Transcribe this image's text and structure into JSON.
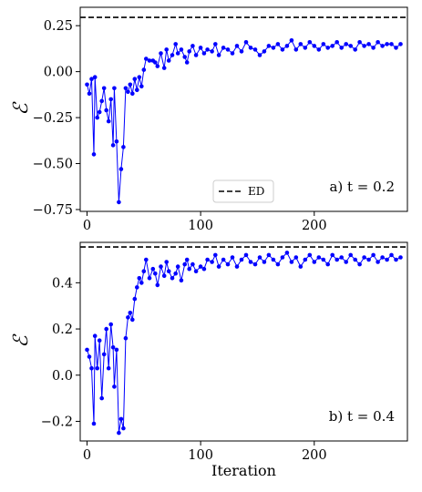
{
  "chart_data": [
    {
      "type": "line",
      "annotation": "a) t = 0.2",
      "ylabel": "ℰ",
      "xlabel": "",
      "xlim": [
        -6,
        282
      ],
      "ylim": [
        -0.76,
        0.35
      ],
      "xticks": [
        0,
        100,
        200
      ],
      "yticks": [
        -0.75,
        -0.5,
        -0.25,
        0.0,
        0.25
      ],
      "ytick_labels": [
        "−0.75",
        "−0.50",
        "−0.25",
        "0.00",
        "0.25"
      ],
      "legend": {
        "position": "bottom-center",
        "entries": [
          {
            "name": "ED",
            "style": "dashed",
            "color": "#000000"
          }
        ]
      },
      "ed_value": 0.295,
      "series": [
        {
          "name": "",
          "color": "#0000ff",
          "x": [
            0,
            2,
            4,
            6,
            7,
            9,
            11,
            13,
            15,
            17,
            19,
            21,
            23,
            24,
            26,
            28,
            30,
            32,
            34,
            36,
            38,
            40,
            42,
            44,
            46,
            48,
            50,
            52,
            55,
            58,
            60,
            62,
            65,
            68,
            70,
            72,
            75,
            78,
            80,
            83,
            86,
            88,
            90,
            93,
            96,
            100,
            103,
            106,
            110,
            113,
            116,
            120,
            124,
            128,
            132,
            136,
            140,
            144,
            148,
            152,
            156,
            160,
            164,
            168,
            172,
            176,
            180,
            184,
            188,
            192,
            196,
            200,
            204,
            208,
            212,
            216,
            220,
            224,
            228,
            232,
            236,
            240,
            244,
            248,
            252,
            256,
            260,
            264,
            268,
            272,
            276
          ],
          "y": [
            -0.07,
            -0.12,
            -0.04,
            -0.45,
            -0.03,
            -0.25,
            -0.22,
            -0.16,
            -0.09,
            -0.21,
            -0.27,
            -0.15,
            -0.4,
            -0.09,
            -0.38,
            -0.71,
            -0.53,
            -0.41,
            -0.09,
            -0.11,
            -0.07,
            -0.12,
            -0.04,
            -0.1,
            -0.03,
            -0.08,
            0.01,
            0.07,
            0.06,
            0.06,
            0.05,
            0.03,
            0.1,
            0.02,
            0.12,
            0.06,
            0.09,
            0.15,
            0.1,
            0.12,
            0.08,
            0.05,
            0.11,
            0.14,
            0.09,
            0.13,
            0.1,
            0.12,
            0.11,
            0.15,
            0.09,
            0.13,
            0.12,
            0.1,
            0.14,
            0.11,
            0.16,
            0.13,
            0.12,
            0.09,
            0.11,
            0.14,
            0.13,
            0.15,
            0.12,
            0.14,
            0.17,
            0.12,
            0.15,
            0.13,
            0.16,
            0.14,
            0.12,
            0.15,
            0.13,
            0.14,
            0.16,
            0.13,
            0.15,
            0.14,
            0.12,
            0.16,
            0.14,
            0.15,
            0.13,
            0.16,
            0.14,
            0.15,
            0.15,
            0.13,
            0.15
          ]
        }
      ]
    },
    {
      "type": "line",
      "annotation": "b) t = 0.4",
      "ylabel": "ℰ",
      "xlabel": "Iteration",
      "xlim": [
        -6,
        282
      ],
      "ylim": [
        -0.285,
        0.575
      ],
      "xticks": [
        0,
        100,
        200
      ],
      "yticks": [
        -0.2,
        0.0,
        0.2,
        0.4
      ],
      "ytick_labels": [
        "−0.2",
        "0.0",
        "0.2",
        "0.4"
      ],
      "ed_value": 0.555,
      "series": [
        {
          "name": "",
          "color": "#0000ff",
          "x": [
            0,
            2,
            4,
            6,
            7,
            9,
            11,
            13,
            15,
            17,
            19,
            21,
            23,
            24,
            26,
            28,
            30,
            32,
            34,
            36,
            38,
            40,
            42,
            44,
            46,
            48,
            50,
            52,
            55,
            58,
            60,
            62,
            65,
            68,
            70,
            72,
            75,
            78,
            80,
            83,
            86,
            88,
            90,
            93,
            96,
            100,
            103,
            106,
            110,
            113,
            116,
            120,
            124,
            128,
            132,
            136,
            140,
            144,
            148,
            152,
            156,
            160,
            164,
            168,
            172,
            176,
            180,
            184,
            188,
            192,
            196,
            200,
            204,
            208,
            212,
            216,
            220,
            224,
            228,
            232,
            236,
            240,
            244,
            248,
            252,
            256,
            260,
            264,
            268,
            272,
            276
          ],
          "y": [
            0.11,
            0.08,
            0.03,
            -0.21,
            0.17,
            0.03,
            0.15,
            -0.1,
            0.09,
            0.2,
            0.03,
            0.22,
            0.12,
            -0.05,
            0.11,
            -0.25,
            -0.19,
            -0.23,
            0.16,
            0.25,
            0.27,
            0.24,
            0.33,
            0.38,
            0.42,
            0.4,
            0.45,
            0.5,
            0.42,
            0.46,
            0.44,
            0.39,
            0.47,
            0.43,
            0.49,
            0.45,
            0.42,
            0.44,
            0.47,
            0.41,
            0.48,
            0.5,
            0.46,
            0.48,
            0.45,
            0.47,
            0.46,
            0.5,
            0.49,
            0.52,
            0.47,
            0.5,
            0.48,
            0.51,
            0.47,
            0.5,
            0.52,
            0.49,
            0.48,
            0.51,
            0.49,
            0.52,
            0.5,
            0.48,
            0.51,
            0.53,
            0.49,
            0.51,
            0.47,
            0.5,
            0.52,
            0.49,
            0.51,
            0.5,
            0.48,
            0.52,
            0.5,
            0.51,
            0.49,
            0.52,
            0.5,
            0.48,
            0.51,
            0.5,
            0.52,
            0.49,
            0.51,
            0.5,
            0.52,
            0.5,
            0.51
          ]
        }
      ]
    }
  ]
}
